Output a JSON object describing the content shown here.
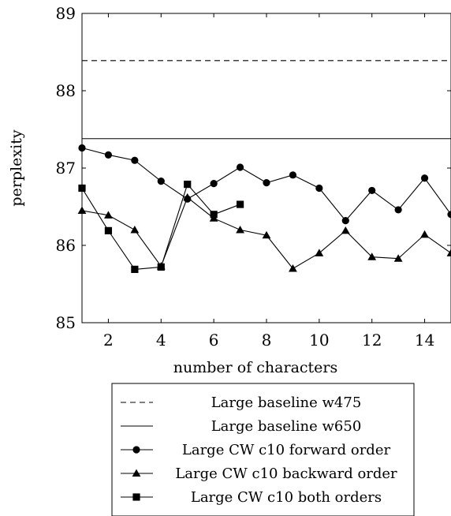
{
  "chart_data": {
    "type": "line",
    "xlabel": "number of characters",
    "ylabel": "perplexity",
    "xlim": [
      1,
      15
    ],
    "ylim": [
      85,
      89
    ],
    "xticks": [
      2,
      4,
      6,
      8,
      10,
      12,
      14
    ],
    "yticks": [
      85,
      86,
      87,
      88,
      89
    ],
    "grid": false,
    "legend_position": "below",
    "series": [
      {
        "name": "Large baseline w475",
        "style": "dashed",
        "marker": "none",
        "x": [
          1,
          15
        ],
        "y": [
          88.39,
          88.39
        ]
      },
      {
        "name": "Large baseline w650",
        "style": "solid",
        "marker": "none",
        "x": [
          1,
          15
        ],
        "y": [
          87.38,
          87.38
        ]
      },
      {
        "name": "Large CW c10 forward order",
        "style": "solid",
        "marker": "circle",
        "x": [
          1,
          2,
          3,
          4,
          5,
          6,
          7,
          8,
          9,
          10,
          11,
          12,
          13,
          14,
          15
        ],
        "y": [
          87.26,
          87.17,
          87.1,
          86.83,
          86.6,
          86.8,
          87.01,
          86.81,
          86.91,
          86.74,
          86.32,
          86.71,
          86.46,
          86.87,
          86.4
        ]
      },
      {
        "name": "Large CW c10 backward order",
        "style": "solid",
        "marker": "triangle",
        "x": [
          1,
          2,
          3,
          4,
          5,
          6,
          7,
          8,
          9,
          10,
          11,
          12,
          13,
          14,
          15
        ],
        "y": [
          86.45,
          86.39,
          86.2,
          85.73,
          86.62,
          86.35,
          86.2,
          86.13,
          85.7,
          85.9,
          86.19,
          85.85,
          85.83,
          86.14,
          85.9
        ]
      },
      {
        "name": "Large CW c10 both orders",
        "style": "solid",
        "marker": "square",
        "x": [
          1,
          2,
          3,
          4,
          5,
          6,
          7
        ],
        "y": [
          86.74,
          86.19,
          85.69,
          85.72,
          86.79,
          86.4,
          86.53
        ]
      }
    ]
  }
}
